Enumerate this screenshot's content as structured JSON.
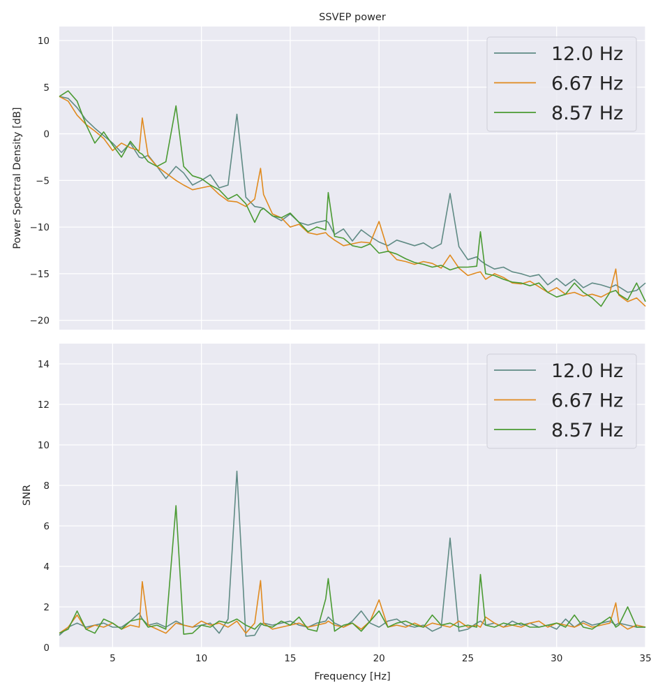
{
  "chart_data": [
    {
      "type": "line",
      "title": "SSVEP power",
      "xlabel": "",
      "ylabel": "Power Spectral Density [dB]",
      "xlim": [
        2,
        35
      ],
      "ylim": [
        -21,
        11.5
      ],
      "xticks": [
        5,
        10,
        15,
        20,
        25,
        30,
        35
      ],
      "yticks": [
        10,
        5,
        0,
        -5,
        -10,
        -15,
        -20
      ],
      "ytick_labels": [
        "10",
        "5",
        "0",
        "−5",
        "−10",
        "−15",
        "−20"
      ],
      "grid": true,
      "legend_position": "top-right",
      "x": [
        2,
        2.5,
        3,
        3.5,
        4,
        4.5,
        5,
        5.5,
        6,
        6.5,
        6.67,
        7,
        7.5,
        8,
        8.57,
        9,
        9.5,
        10,
        10.5,
        11,
        11.5,
        12,
        12.5,
        13,
        13.33,
        13.5,
        14,
        14.5,
        15,
        15.5,
        16,
        16.5,
        17,
        17.14,
        17.5,
        18,
        18.5,
        19,
        19.5,
        20,
        20.5,
        21,
        21.5,
        22,
        22.5,
        23,
        23.5,
        24,
        24.5,
        25,
        25.5,
        25.71,
        26,
        26.5,
        27,
        27.5,
        28,
        28.5,
        29,
        29.5,
        30,
        30.5,
        31,
        31.5,
        32,
        32.5,
        33,
        33.33,
        33.5,
        34,
        34.5,
        35
      ],
      "series": [
        {
          "name": "12.0 Hz",
          "color": "#5f8a84",
          "values": [
            4.0,
            3.8,
            2.8,
            1.5,
            0.6,
            -0.2,
            -1.0,
            -2.0,
            -1.0,
            -2.5,
            -2.6,
            -2.3,
            -3.5,
            -4.8,
            -3.5,
            -4.2,
            -5.5,
            -5.0,
            -4.4,
            -5.8,
            -5.5,
            2.1,
            -6.8,
            -7.8,
            -7.9,
            -8.0,
            -8.8,
            -9.3,
            -8.6,
            -9.5,
            -9.8,
            -9.5,
            -9.3,
            -9.5,
            -10.8,
            -10.2,
            -11.5,
            -10.3,
            -11.0,
            -11.6,
            -12.0,
            -11.4,
            -11.7,
            -12.0,
            -11.7,
            -12.3,
            -11.8,
            -6.4,
            -12.1,
            -13.5,
            -13.2,
            -13.6,
            -14.0,
            -14.5,
            -14.3,
            -14.8,
            -15.0,
            -15.3,
            -15.1,
            -16.2,
            -15.5,
            -16.3,
            -15.6,
            -16.5,
            -16.0,
            -16.2,
            -16.5,
            -16.2,
            -16.4,
            -17.0,
            -16.8,
            -16.0
          ]
        },
        {
          "name": "6.67 Hz",
          "color": "#e08a1e",
          "values": [
            4.0,
            3.5,
            2.0,
            1.0,
            0.3,
            -0.5,
            -1.8,
            -1.0,
            -1.5,
            -1.8,
            1.7,
            -2.4,
            -3.5,
            -4.2,
            -5.0,
            -5.5,
            -6.0,
            -5.8,
            -5.6,
            -6.5,
            -7.2,
            -7.3,
            -7.8,
            -7.0,
            -3.7,
            -6.5,
            -8.6,
            -9.0,
            -10.0,
            -9.7,
            -10.6,
            -10.8,
            -10.6,
            -10.9,
            -11.4,
            -12.0,
            -11.8,
            -11.6,
            -11.7,
            -9.4,
            -12.5,
            -13.5,
            -13.7,
            -14.0,
            -13.7,
            -13.9,
            -14.4,
            -13.0,
            -14.4,
            -15.2,
            -14.9,
            -14.8,
            -15.6,
            -15.0,
            -15.4,
            -16.0,
            -16.1,
            -15.8,
            -16.4,
            -17.0,
            -16.5,
            -17.2,
            -17.0,
            -17.4,
            -17.2,
            -17.5,
            -17.0,
            -14.5,
            -17.3,
            -18.0,
            -17.6,
            -18.5
          ]
        },
        {
          "name": "8.57 Hz",
          "color": "#4a9a32",
          "values": [
            4.0,
            4.6,
            3.5,
            1.0,
            -1.0,
            0.2,
            -1.2,
            -2.5,
            -0.8,
            -2.0,
            -2.2,
            -3.0,
            -3.5,
            -3.0,
            3.0,
            -3.5,
            -4.5,
            -4.8,
            -5.5,
            -6.0,
            -7.0,
            -6.5,
            -7.5,
            -9.5,
            -8.2,
            -8.0,
            -8.8,
            -9.0,
            -8.5,
            -9.5,
            -10.5,
            -10.0,
            -10.3,
            -6.3,
            -11.0,
            -11.2,
            -12.0,
            -12.2,
            -11.8,
            -12.8,
            -12.6,
            -12.9,
            -13.4,
            -13.8,
            -14.0,
            -14.3,
            -14.1,
            -14.6,
            -14.3,
            -14.3,
            -14.2,
            -10.5,
            -15.0,
            -15.2,
            -15.6,
            -15.9,
            -16.0,
            -16.3,
            -16.0,
            -17.0,
            -17.5,
            -17.2,
            -16.0,
            -17.0,
            -17.6,
            -18.5,
            -17.0,
            -16.8,
            -17.2,
            -17.8,
            -16.0,
            -18.0
          ]
        }
      ]
    },
    {
      "type": "line",
      "title": "",
      "xlabel": "Frequency [Hz]",
      "ylabel": "SNR",
      "xlim": [
        2,
        35
      ],
      "ylim": [
        0,
        15
      ],
      "xticks": [
        5,
        10,
        15,
        20,
        25,
        30,
        35
      ],
      "yticks": [
        0,
        2,
        4,
        6,
        8,
        10,
        12,
        14
      ],
      "ytick_labels": [
        "0",
        "2",
        "4",
        "6",
        "8",
        "10",
        "12",
        "14"
      ],
      "grid": true,
      "legend_position": "top-right",
      "x": [
        2,
        2.5,
        3,
        3.5,
        4,
        4.5,
        5,
        5.5,
        6,
        6.5,
        6.67,
        7,
        7.5,
        8,
        8.57,
        9,
        9.5,
        10,
        10.5,
        11,
        11.5,
        12,
        12.5,
        13,
        13.33,
        13.5,
        14,
        14.5,
        15,
        15.5,
        16,
        16.5,
        17,
        17.14,
        17.5,
        18,
        18.5,
        19,
        19.5,
        20,
        20.5,
        21,
        21.5,
        22,
        22.5,
        23,
        23.5,
        24,
        24.5,
        25,
        25.5,
        25.71,
        26,
        26.5,
        27,
        27.5,
        28,
        28.5,
        29,
        29.5,
        30,
        30.5,
        31,
        31.5,
        32,
        32.5,
        33,
        33.33,
        33.5,
        34,
        34.5,
        35
      ],
      "series": [
        {
          "name": "12.0 Hz",
          "color": "#5f8a84",
          "values": [
            0.6,
            1.0,
            1.2,
            1.0,
            1.1,
            1.2,
            1.0,
            1.0,
            1.3,
            1.7,
            1.4,
            1.1,
            1.2,
            1.0,
            1.3,
            1.1,
            1.0,
            1.1,
            1.2,
            0.7,
            1.4,
            8.7,
            0.55,
            0.6,
            1.1,
            1.2,
            1.1,
            1.2,
            1.3,
            1.1,
            1.0,
            1.2,
            1.3,
            1.5,
            1.2,
            1.0,
            1.3,
            1.8,
            1.2,
            1.0,
            1.3,
            1.4,
            1.1,
            1.0,
            1.1,
            0.8,
            1.0,
            5.4,
            0.8,
            0.9,
            1.2,
            1.3,
            1.1,
            1.2,
            1.0,
            1.3,
            1.1,
            1.2,
            1.0,
            1.1,
            0.9,
            1.4,
            1.0,
            1.3,
            1.1,
            1.2,
            1.3,
            1.1,
            1.2,
            1.1,
            1.0,
            1.0
          ]
        },
        {
          "name": "6.67 Hz",
          "color": "#e08a1e",
          "values": [
            0.7,
            1.0,
            1.6,
            0.9,
            1.1,
            1.0,
            1.2,
            0.9,
            1.1,
            1.0,
            3.25,
            1.1,
            0.9,
            0.7,
            1.2,
            1.1,
            1.0,
            1.3,
            1.1,
            1.2,
            1.0,
            1.3,
            0.7,
            1.2,
            3.3,
            1.2,
            0.9,
            1.0,
            1.1,
            1.2,
            1.0,
            1.1,
            1.2,
            1.3,
            1.1,
            1.0,
            1.2,
            0.9,
            1.3,
            2.35,
            1.0,
            1.1,
            1.0,
            1.2,
            1.0,
            1.2,
            1.1,
            1.0,
            1.3,
            1.0,
            1.1,
            1.0,
            1.5,
            1.2,
            1.0,
            1.1,
            1.0,
            1.2,
            1.3,
            1.0,
            1.2,
            1.1,
            1.0,
            1.2,
            1.0,
            1.1,
            1.2,
            2.2,
            1.2,
            0.9,
            1.1,
            1.0
          ]
        },
        {
          "name": "8.57 Hz",
          "color": "#4a9a32",
          "values": [
            0.7,
            0.9,
            1.8,
            0.9,
            0.7,
            1.4,
            1.2,
            0.9,
            1.3,
            1.4,
            1.4,
            1.0,
            1.1,
            0.9,
            7.0,
            0.65,
            0.7,
            1.1,
            1.0,
            1.3,
            1.2,
            1.4,
            1.1,
            0.9,
            1.2,
            1.1,
            1.0,
            1.3,
            1.1,
            1.5,
            0.9,
            0.8,
            2.4,
            3.4,
            0.8,
            1.1,
            1.2,
            0.8,
            1.3,
            1.8,
            1.0,
            1.2,
            1.3,
            1.1,
            1.0,
            1.6,
            1.1,
            1.2,
            1.0,
            1.1,
            1.0,
            3.6,
            1.1,
            1.0,
            1.2,
            1.1,
            1.2,
            1.0,
            1.0,
            1.1,
            1.2,
            1.0,
            1.6,
            1.0,
            0.9,
            1.2,
            1.5,
            1.0,
            1.1,
            2.0,
            1.0,
            1.0
          ]
        }
      ]
    }
  ]
}
